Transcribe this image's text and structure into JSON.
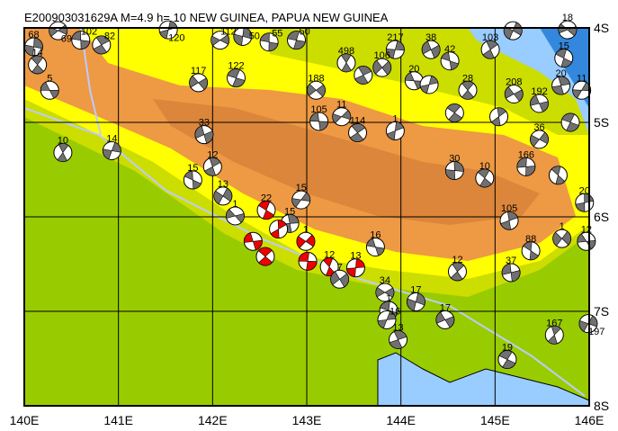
{
  "title": "E200903031629A M=4.9 h= 10 NEW GUINEA, PAPUA NEW GUINEA",
  "map": {
    "lon_range": [
      140,
      146
    ],
    "lat_range": [
      4,
      8
    ],
    "lon_ticks": [
      "140E",
      "141E",
      "142E",
      "143E",
      "144E",
      "145E",
      "146E"
    ],
    "lat_ticks": [
      "4S",
      "5S",
      "6S",
      "7S",
      "8S"
    ],
    "colors": {
      "lowland": "#99cc00",
      "hill": "#ccdd00",
      "upland": "#ffff00",
      "highland": "#ee9944",
      "peak": "#cc7733",
      "ocean": "#99ccff",
      "deep_ocean": "#3388dd",
      "fault": "#bbccff",
      "focal_fill": "#707070",
      "event_fill": "#ee0000"
    }
  },
  "mechanisms": [
    {
      "lon": 140.27,
      "lat": 4.66,
      "label": "5"
    },
    {
      "lon": 140.14,
      "lat": 4.39,
      "label": "14"
    },
    {
      "lon": 140.1,
      "lat": 4.2,
      "label": "68"
    },
    {
      "lon": 140.36,
      "lat": 4.03,
      "label": "69"
    },
    {
      "lon": 140.6,
      "lat": 4.13,
      "label": "102"
    },
    {
      "lon": 140.82,
      "lat": 4.18,
      "label": "82"
    },
    {
      "lon": 141.53,
      "lat": 4.02,
      "label": "120"
    },
    {
      "lon": 141.85,
      "lat": 4.58,
      "label": "117"
    },
    {
      "lon": 142.25,
      "lat": 4.53,
      "label": "122"
    },
    {
      "lon": 140.41,
      "lat": 5.32,
      "label": "10"
    },
    {
      "lon": 140.93,
      "lat": 5.3,
      "label": "14"
    },
    {
      "lon": 141.91,
      "lat": 5.13,
      "label": "33"
    },
    {
      "lon": 141.79,
      "lat": 5.61,
      "label": "15"
    },
    {
      "lon": 142.0,
      "lat": 5.47,
      "label": "12"
    },
    {
      "lon": 142.11,
      "lat": 5.78,
      "label": "13"
    },
    {
      "lon": 142.24,
      "lat": 5.99,
      "label": "1"
    },
    {
      "lon": 142.57,
      "lat": 5.93,
      "label": "22",
      "red": true
    },
    {
      "lon": 142.82,
      "lat": 6.07,
      "label": "15"
    },
    {
      "lon": 142.94,
      "lat": 5.82,
      "label": "15"
    },
    {
      "lon": 142.43,
      "lat": 6.26,
      "label": "",
      "red": true
    },
    {
      "lon": 142.56,
      "lat": 6.42,
      "label": "",
      "red": true
    },
    {
      "lon": 142.7,
      "lat": 6.13,
      "label": "",
      "red": true
    },
    {
      "lon": 142.99,
      "lat": 6.26,
      "label": "1",
      "red": true
    },
    {
      "lon": 143.01,
      "lat": 6.47,
      "label": "",
      "red": true
    },
    {
      "lon": 143.24,
      "lat": 6.53,
      "label": "12",
      "red": true
    },
    {
      "lon": 143.52,
      "lat": 6.54,
      "label": "13",
      "red": true
    },
    {
      "lon": 143.35,
      "lat": 6.66,
      "label": "7"
    },
    {
      "lon": 143.73,
      "lat": 6.32,
      "label": "16"
    },
    {
      "lon": 144.6,
      "lat": 6.58,
      "label": "12"
    },
    {
      "lon": 144.16,
      "lat": 6.9,
      "label": "17"
    },
    {
      "lon": 143.83,
      "lat": 6.8,
      "label": "34"
    },
    {
      "lon": 143.87,
      "lat": 6.99,
      "label": "1"
    },
    {
      "lon": 143.97,
      "lat": 7.3,
      "label": "13"
    },
    {
      "lon": 143.85,
      "lat": 7.09,
      "label": "16"
    },
    {
      "lon": 144.47,
      "lat": 7.09,
      "label": "17"
    },
    {
      "lon": 145.13,
      "lat": 7.51,
      "label": "19"
    },
    {
      "lon": 145.63,
      "lat": 7.25,
      "label": "167"
    },
    {
      "lon": 145.99,
      "lat": 7.13,
      "label": "197"
    },
    {
      "lon": 145.17,
      "lat": 6.59,
      "label": "37"
    },
    {
      "lon": 145.38,
      "lat": 6.36,
      "label": "88"
    },
    {
      "lon": 145.15,
      "lat": 6.04,
      "label": "105"
    },
    {
      "lon": 145.71,
      "lat": 6.23,
      "label": "1"
    },
    {
      "lon": 145.97,
      "lat": 6.26,
      "label": "12"
    },
    {
      "lon": 144.89,
      "lat": 5.59,
      "label": "10"
    },
    {
      "lon": 144.57,
      "lat": 5.51,
      "label": "30"
    },
    {
      "lon": 143.37,
      "lat": 4.94,
      "label": "11"
    },
    {
      "lon": 143.13,
      "lat": 4.99,
      "label": "105"
    },
    {
      "lon": 143.54,
      "lat": 5.11,
      "label": "114"
    },
    {
      "lon": 143.94,
      "lat": 5.09,
      "label": "1"
    },
    {
      "lon": 143.1,
      "lat": 4.66,
      "label": "188"
    },
    {
      "lon": 142.89,
      "lat": 4.13,
      "label": "50"
    },
    {
      "lon": 143.42,
      "lat": 4.37,
      "label": "498"
    },
    {
      "lon": 143.94,
      "lat": 4.23,
      "label": "217"
    },
    {
      "lon": 144.32,
      "lat": 4.23,
      "label": "38"
    },
    {
      "lon": 144.52,
      "lat": 4.35,
      "label": "42"
    },
    {
      "lon": 144.95,
      "lat": 4.23,
      "label": "103"
    },
    {
      "lon": 145.19,
      "lat": 4.03,
      "label": ""
    },
    {
      "lon": 145.77,
      "lat": 4.02,
      "label": "18"
    },
    {
      "lon": 145.73,
      "lat": 4.32,
      "label": "15"
    },
    {
      "lon": 145.7,
      "lat": 4.61,
      "label": "20"
    },
    {
      "lon": 145.92,
      "lat": 4.66,
      "label": "11"
    },
    {
      "lon": 145.47,
      "lat": 4.8,
      "label": "192"
    },
    {
      "lon": 144.57,
      "lat": 4.9,
      "label": ""
    },
    {
      "lon": 145.04,
      "lat": 4.94,
      "label": ""
    },
    {
      "lon": 145.47,
      "lat": 5.18,
      "label": "36"
    },
    {
      "lon": 145.33,
      "lat": 5.47,
      "label": "166"
    },
    {
      "lon": 145.67,
      "lat": 5.56,
      "label": ""
    },
    {
      "lon": 145.95,
      "lat": 5.85,
      "label": "20"
    },
    {
      "lon": 143.8,
      "lat": 4.42,
      "label": "106"
    },
    {
      "lon": 144.14,
      "lat": 4.56,
      "label": "20"
    },
    {
      "lon": 144.71,
      "lat": 4.66,
      "label": "28"
    },
    {
      "lon": 142.32,
      "lat": 4.09,
      "label": "50"
    },
    {
      "lon": 142.08,
      "lat": 4.13,
      "label": "112"
    },
    {
      "lon": 142.6,
      "lat": 4.15,
      "label": "55"
    },
    {
      "lon": 143.6,
      "lat": 4.5,
      "label": ""
    },
    {
      "lon": 144.3,
      "lat": 4.6,
      "label": ""
    },
    {
      "lon": 145.2,
      "lat": 4.7,
      "label": "208"
    },
    {
      "lon": 145.8,
      "lat": 5.0,
      "label": ""
    }
  ]
}
